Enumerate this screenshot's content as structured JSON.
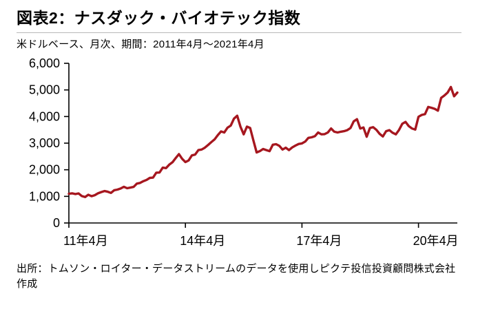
{
  "header": {
    "title": "図表2：ナスダック・バイオテック指数",
    "subtitle": "米ドルベース、月次、期間：2011年4月～2021年4月"
  },
  "footer": {
    "source": "出所：トムソン・ロイター・データストリームのデータを使用しピクテ投信投資顧問株式会社作成"
  },
  "chart_data": {
    "type": "line",
    "title": "ナスダック・バイオテック指数",
    "subtitle": "米ドルベース、月次、期間：2011年4月～2021年4月",
    "x_start": "2011-04",
    "x_end": "2021-04",
    "frequency": "monthly",
    "ylim": [
      0,
      6000
    ],
    "grid": false,
    "legend": "none",
    "line_color": "#a6171f",
    "axis_color": "#000000",
    "y_ticks": [
      {
        "value": 0,
        "label": "0"
      },
      {
        "value": 1000,
        "label": "1,000"
      },
      {
        "value": 2000,
        "label": "2,000"
      },
      {
        "value": 3000,
        "label": "3,000"
      },
      {
        "value": 4000,
        "label": "4,000"
      },
      {
        "value": 5000,
        "label": "5,000"
      },
      {
        "value": 6000,
        "label": "6,000"
      }
    ],
    "x_ticks": [
      {
        "index": 0,
        "label": "11年4月"
      },
      {
        "index": 36,
        "label": "14年4月"
      },
      {
        "index": 72,
        "label": "17年4月"
      },
      {
        "index": 108,
        "label": "20年4月"
      }
    ],
    "series_name": "ナスダック・バイオテック指数",
    "values": [
      1100,
      1115,
      1085,
      1110,
      1010,
      975,
      1060,
      1005,
      1045,
      1115,
      1160,
      1200,
      1175,
      1130,
      1230,
      1255,
      1295,
      1360,
      1305,
      1330,
      1355,
      1480,
      1505,
      1570,
      1620,
      1695,
      1705,
      1890,
      1895,
      2080,
      2060,
      2190,
      2280,
      2440,
      2590,
      2410,
      2290,
      2350,
      2540,
      2570,
      2740,
      2760,
      2830,
      2930,
      3040,
      3140,
      3300,
      3440,
      3400,
      3580,
      3660,
      3920,
      4030,
      3620,
      3330,
      3620,
      3570,
      3100,
      2650,
      2700,
      2780,
      2740,
      2700,
      2940,
      2960,
      2900,
      2760,
      2830,
      2740,
      2840,
      2910,
      2970,
      2990,
      3060,
      3200,
      3220,
      3260,
      3400,
      3330,
      3340,
      3400,
      3550,
      3430,
      3400,
      3430,
      3450,
      3490,
      3570,
      3820,
      3900,
      3550,
      3590,
      3240,
      3570,
      3600,
      3500,
      3350,
      3250,
      3450,
      3490,
      3390,
      3330,
      3500,
      3730,
      3800,
      3640,
      3550,
      3510,
      3990,
      4060,
      4090,
      4360,
      4330,
      4290,
      4220,
      4700,
      4790,
      4900,
      5110,
      4760,
      4900
    ]
  }
}
